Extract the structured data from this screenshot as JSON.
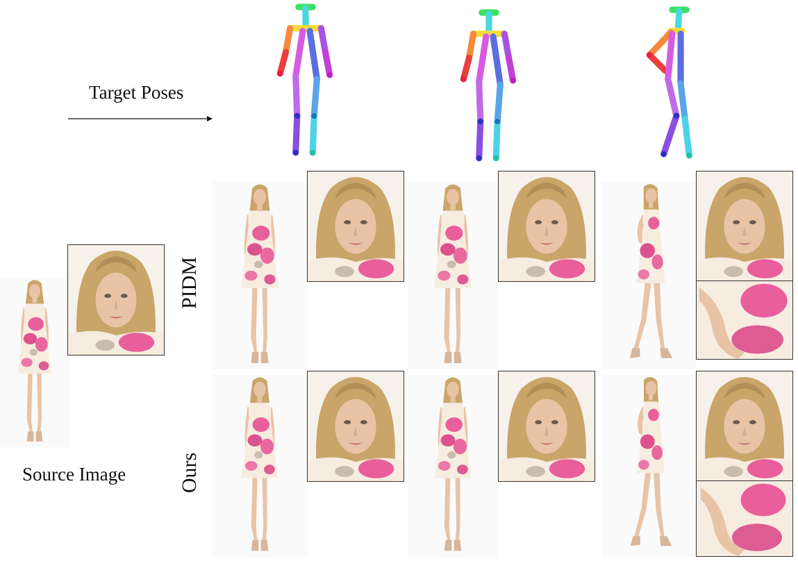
{
  "labels": {
    "target_poses": "Target Poses",
    "source_image": "Source Image",
    "row_pidm": "PIDM",
    "row_ours": "Ours"
  },
  "colors": {
    "skin": "#e8c3a6",
    "hair": "#c9a56a",
    "hair_dark": "#9c7a45",
    "dress": "#f7ece0",
    "floral_pink": "#e5478f",
    "floral_deep": "#d21f72",
    "floral_grey": "#a89c8c",
    "shoe": "#d9b59a",
    "crop_border": "#333333"
  },
  "icons": {
    "arrow": "right-arrow-icon",
    "pose": "pose-skeleton-icon"
  }
}
